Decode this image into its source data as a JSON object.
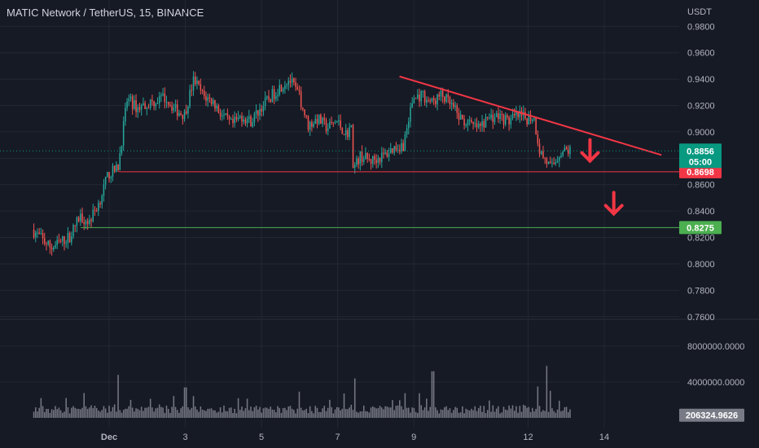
{
  "header": {
    "title": "MATIC Network / TetherUS, 15, BINANCE"
  },
  "colors": {
    "background": "#161a25",
    "grid": "#232733",
    "candle_up": "#26a69a",
    "candle_down": "#ef5350",
    "volume": "#9598a1",
    "resistance_line": "#f23645",
    "support_line": "#4caf50",
    "last_price_tag": "#089981",
    "arrow": "#f23645"
  },
  "chart_data": {
    "type": "candlestick",
    "title": "MATIC Network / TetherUS, 15, BINANCE",
    "currency_label": "USDT",
    "price_axis_ticks": [
      "0.9800",
      "0.9600",
      "0.9400",
      "0.9200",
      "0.9000",
      "0.8800",
      "0.8600",
      "0.8400",
      "0.8200",
      "0.8000",
      "0.7800",
      "0.7600"
    ],
    "price_range": [
      0.758,
      0.995
    ],
    "volume_axis_ticks": [
      "8000000.0000",
      "4000000.0000"
    ],
    "volume_range": [
      0,
      11000000
    ],
    "time_axis_ticks": [
      "Dec",
      "3",
      "5",
      "7",
      "9",
      "12",
      "14"
    ],
    "price_path": [
      [
        "Nov 29 00:00",
        0.826
      ],
      [
        "Nov 29 12:00",
        0.812
      ],
      [
        "Nov 30 00:00",
        0.821
      ],
      [
        "Nov 30 06:00",
        0.836
      ],
      [
        "Nov 30 12:00",
        0.832
      ],
      [
        "Nov 30 18:00",
        0.846
      ],
      [
        "Dec 1 00:00",
        0.868
      ],
      [
        "Dec 1 06:00",
        0.872
      ],
      [
        "Dec 1 12:00",
        0.925
      ],
      [
        "Dec 1 18:00",
        0.918
      ],
      [
        "Dec 2 00:00",
        0.921
      ],
      [
        "Dec 2 12:00",
        0.926
      ],
      [
        "Dec 2 18:00",
        0.917
      ],
      [
        "Dec 3 00:00",
        0.913
      ],
      [
        "Dec 3 06:00",
        0.94
      ],
      [
        "Dec 3 12:00",
        0.927
      ],
      [
        "Dec 3 18:00",
        0.923
      ],
      [
        "Dec 4 00:00",
        0.912
      ],
      [
        "Dec 4 06:00",
        0.905
      ],
      [
        "Dec 4 12:00",
        0.912
      ],
      [
        "Dec 4 18:00",
        0.908
      ],
      [
        "Dec 5 00:00",
        0.918
      ],
      [
        "Dec 5 12:00",
        0.934
      ],
      [
        "Dec 5 18:00",
        0.94
      ],
      [
        "Dec 6 00:00",
        0.928
      ],
      [
        "Dec 6 06:00",
        0.905
      ],
      [
        "Dec 6 12:00",
        0.91
      ],
      [
        "Dec 6 18:00",
        0.903
      ],
      [
        "Dec 7 00:00",
        0.908
      ],
      [
        "Dec 7 06:00",
        0.898
      ],
      [
        "Dec 7 09:00",
        0.905
      ],
      [
        "Dec 7 10:30",
        0.872
      ],
      [
        "Dec 7 15:00",
        0.882
      ],
      [
        "Dec 7 21:00",
        0.878
      ],
      [
        "Dec 8 06:00",
        0.882
      ],
      [
        "Dec 8 12:00",
        0.888
      ],
      [
        "Dec 8 18:00",
        0.89
      ],
      [
        "Dec 9 00:00",
        0.925
      ],
      [
        "Dec 9 06:00",
        0.928
      ],
      [
        "Dec 9 12:00",
        0.922
      ],
      [
        "Dec 9 18:00",
        0.928
      ],
      [
        "Dec 10 00:00",
        0.92
      ],
      [
        "Dec 10 06:00",
        0.91
      ],
      [
        "Dec 10 12:00",
        0.905
      ],
      [
        "Dec 10 18:00",
        0.903
      ],
      [
        "Dec 11 00:00",
        0.911
      ],
      [
        "Dec 11 06:00",
        0.912
      ],
      [
        "Dec 11 12:00",
        0.908
      ],
      [
        "Dec 11 18:00",
        0.912
      ],
      [
        "Dec 12 00:00",
        0.91
      ],
      [
        "Dec 12 04:00",
        0.912
      ],
      [
        "Dec 12 08:00",
        0.885
      ],
      [
        "Dec 12 12:00",
        0.878
      ],
      [
        "Dec 12 15:00",
        0.872
      ],
      [
        "Dec 12 21:00",
        0.885
      ],
      [
        "Dec 13 03:00",
        0.886
      ]
    ],
    "last_price": {
      "value": 0.8856,
      "label": "0.8856",
      "countdown": "05:00"
    },
    "levels": [
      {
        "name": "support-1",
        "value": 0.8698,
        "label": "0.8698",
        "color": "#f23645",
        "from_date": "Dec 1 06:00"
      },
      {
        "name": "support-2",
        "value": 0.8275,
        "label": "0.8275",
        "color": "#4caf50",
        "from_date": "Nov 30 06:00"
      }
    ],
    "trendline": {
      "from": [
        "Dec 8 15:00",
        0.942
      ],
      "to": [
        "Dec 15 12:00",
        0.8825
      ],
      "color": "#f23645"
    },
    "arrows": [
      {
        "date": "Dec 13 15:00",
        "price": 0.878,
        "direction": "down"
      },
      {
        "date": "Dec 14 06:00",
        "price": 0.838,
        "direction": "down"
      }
    ],
    "volume_last": {
      "value": 206324.9626,
      "label": "206324.9626"
    },
    "volume_spikes": [
      [
        "Dec 1 06:00",
        4800000
      ],
      [
        "Dec 3 00:00",
        3400000
      ],
      [
        "Dec 7 10:30",
        4400000
      ],
      [
        "Dec 9 12:00",
        5200000
      ],
      [
        "Dec 12 06:00",
        3500000
      ],
      [
        "Dec 12 12:00",
        5800000
      ]
    ]
  }
}
